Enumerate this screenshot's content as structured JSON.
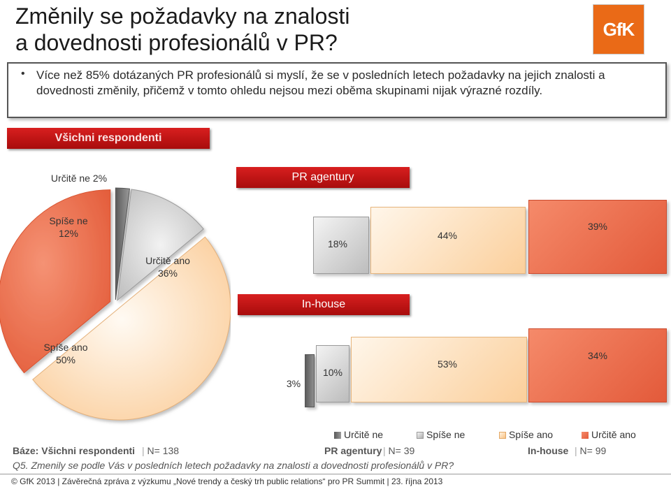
{
  "title_line1": "Změnily se požadavky na znalosti",
  "title_line2": "a dovednosti profesionálů v PR?",
  "logo_text": "GfK",
  "bullet": "Více než 85% dotázaných PR profesionálů si myslí, že se v posledních letech požadavky na jejich znalosti a dovednosti změnily, přičemž v tomto ohledu nejsou mezi oběma skupinami nijak výrazné rozdíly.",
  "colors": {
    "red": "#c8140f",
    "urcite_ne": "#7a7a7a",
    "spise_ne": "#c8c8c8",
    "spise_ano": "#fbd4a6",
    "urcite_ano": "#ec7150"
  },
  "chart_data": [
    {
      "type": "pie",
      "title": "Všichni respondenti",
      "slices": [
        {
          "name": "Určitě ne",
          "value": 2,
          "label": "Určitě ne 2%"
        },
        {
          "name": "Spíše ne",
          "value": 12,
          "label_name": "Spíše ne",
          "label_value": "12%"
        },
        {
          "name": "Spíše ano",
          "value": 50,
          "label_name": "Spíše ano",
          "label_value": "50%"
        },
        {
          "name": "Určitě ano",
          "value": 36,
          "label_name": "Určitě ano",
          "label_value": "36%"
        }
      ]
    },
    {
      "type": "bar",
      "title": "PR agentury",
      "categories": [
        "Spíše ne",
        "Spíše ano",
        "Určitě ano"
      ],
      "values": [
        18,
        44,
        39
      ],
      "labels": [
        "18%",
        "44%",
        "39%"
      ]
    },
    {
      "type": "bar",
      "title": "In-house",
      "categories": [
        "Určitě ne",
        "Spíše ne",
        "Spíše ano",
        "Určitě ano"
      ],
      "values": [
        3,
        10,
        53,
        34
      ],
      "labels": [
        "3%",
        "10%",
        "53%",
        "34%"
      ]
    }
  ],
  "legend": [
    "Určitě ne",
    "Spíše ne",
    "Spíše ano",
    "Určitě ano"
  ],
  "base": {
    "label": "Báze:",
    "all": "Všichni respondenti",
    "all_n": "N= 138",
    "pr": "PR agentury",
    "pr_n": "N= 39",
    "inhouse": "In-house",
    "inhouse_n": "N= 99"
  },
  "question": "Q5. Zmenily se podle Vás v posledních letech požadavky na znalosti a dovednosti profesionálů v PR?",
  "footer": "© GfK 2013 | Závěrečná zpráva z výzkumu „Nové trendy a český trh public relations“ pro PR Summit | 23. října 2013"
}
